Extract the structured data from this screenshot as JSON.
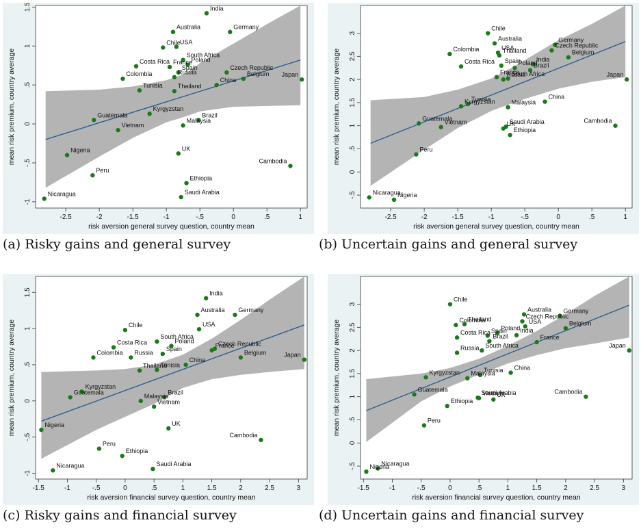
{
  "chart_data": [
    {
      "type": "scatter",
      "caption": "(a) Risky gains and general survey",
      "xlabel": "risk aversion general survey question, country mean",
      "ylabel": "mean risk premium, country average",
      "xlim": [
        -2.95,
        1.1
      ],
      "ylim": [
        -1.08,
        1.52
      ],
      "xticks": [
        -2.5,
        -2,
        -1.5,
        -1,
        -0.5,
        0,
        0.5,
        1
      ],
      "xticklabels": [
        "-2.5",
        "-2",
        "-1.5",
        "-1",
        "-.5",
        "0",
        ".5",
        "1"
      ],
      "yticks": [
        -1,
        -0.5,
        0,
        0.5,
        1,
        1.5
      ],
      "yticklabels": [
        "-1",
        "-.5",
        "0",
        ".5",
        "1",
        "1.5"
      ],
      "fit": {
        "x": [
          -2.8,
          1.0
        ],
        "y": [
          -0.2,
          0.82
        ]
      },
      "band_upper": [
        [
          -2.8,
          0.42
        ],
        [
          -2.0,
          0.44
        ],
        [
          -1.5,
          0.48
        ],
        [
          -1.0,
          0.56
        ],
        [
          -0.7,
          0.65
        ],
        [
          -0.5,
          0.78
        ],
        [
          0.0,
          1.03
        ],
        [
          0.5,
          1.28
        ],
        [
          1.0,
          1.52
        ]
      ],
      "band_lower": [
        [
          -2.8,
          -0.82
        ],
        [
          -2.0,
          -0.42
        ],
        [
          -1.5,
          -0.18
        ],
        [
          -1.0,
          0.02
        ],
        [
          -0.7,
          0.1
        ],
        [
          -0.5,
          0.16
        ],
        [
          0.0,
          0.22
        ],
        [
          0.5,
          0.23
        ],
        [
          1.0,
          0.24
        ]
      ],
      "points": [
        {
          "label": "India",
          "x": -0.4,
          "y": 1.42
        },
        {
          "label": "Germany",
          "x": -0.05,
          "y": 1.18
        },
        {
          "label": "Australia",
          "x": -0.9,
          "y": 1.18
        },
        {
          "label": "USA",
          "x": -0.85,
          "y": 0.99
        },
        {
          "label": "Chile",
          "x": -1.05,
          "y": 0.98
        },
        {
          "label": "South Africa",
          "x": -0.75,
          "y": 0.82
        },
        {
          "label": "Poland",
          "x": -0.68,
          "y": 0.76
        },
        {
          "label": "France",
          "x": -0.95,
          "y": 0.73
        },
        {
          "label": "Costa Rica",
          "x": -1.45,
          "y": 0.74
        },
        {
          "label": "Spain",
          "x": -0.82,
          "y": 0.66
        },
        {
          "label": "Colombia",
          "x": -1.65,
          "y": 0.58
        },
        {
          "label": "Czech Republic",
          "x": -0.1,
          "y": 0.66
        },
        {
          "label": "Russia",
          "x": -0.88,
          "y": 0.6
        },
        {
          "label": "China",
          "x": -0.25,
          "y": 0.5
        },
        {
          "label": "Belgium",
          "x": 0.15,
          "y": 0.58
        },
        {
          "label": "Japan",
          "x": 1.02,
          "y": 0.57
        },
        {
          "label": "Thailand",
          "x": -0.88,
          "y": 0.42
        },
        {
          "label": "Tunisia",
          "x": -1.4,
          "y": 0.43
        },
        {
          "label": "Kyrgyzstan",
          "x": -1.25,
          "y": 0.13
        },
        {
          "label": "Guatemala",
          "x": -2.08,
          "y": 0.05
        },
        {
          "label": "Brazil",
          "x": -0.52,
          "y": 0.05
        },
        {
          "label": "Vietnam",
          "x": -1.72,
          "y": -0.08
        },
        {
          "label": "Malaysia",
          "x": -0.75,
          "y": -0.02
        },
        {
          "label": "Nigeria",
          "x": -2.48,
          "y": -0.4
        },
        {
          "label": "UK",
          "x": -0.82,
          "y": -0.38
        },
        {
          "label": "Cambodia",
          "x": 0.85,
          "y": -0.54
        },
        {
          "label": "Peru",
          "x": -2.1,
          "y": -0.66
        },
        {
          "label": "Ethiopia",
          "x": -0.7,
          "y": -0.76
        },
        {
          "label": "Saudi Arabia",
          "x": -0.78,
          "y": -0.94
        },
        {
          "label": "Nicaragua",
          "x": -2.82,
          "y": -0.96
        }
      ]
    },
    {
      "type": "scatter",
      "caption": "(b) Uncertain gains and general survey",
      "xlabel": "risk aversion general survey question, country mean",
      "ylabel": "mean risk premium, country average",
      "xlim": [
        -2.95,
        1.1
      ],
      "ylim": [
        -0.78,
        3.6
      ],
      "xticks": [
        -2.5,
        -2,
        -1.5,
        -1,
        -0.5,
        0,
        0.5,
        1
      ],
      "xticklabels": [
        "-2.5",
        "-2",
        "-1.5",
        "-1",
        "-.5",
        "0",
        ".5",
        "1"
      ],
      "yticks": [
        -0.5,
        0,
        0.5,
        1,
        1.5,
        2,
        2.5,
        3
      ],
      "yticklabels": [
        "-.5",
        "0",
        ".5",
        "1",
        "1.5",
        "2",
        "2.5",
        "3"
      ],
      "fit": {
        "x": [
          -2.8,
          1.0
        ],
        "y": [
          0.62,
          2.82
        ]
      },
      "band_upper": [
        [
          -2.8,
          1.55
        ],
        [
          -2.0,
          1.62
        ],
        [
          -1.5,
          1.78
        ],
        [
          -1.0,
          2.02
        ],
        [
          -0.7,
          2.25
        ],
        [
          -0.5,
          2.42
        ],
        [
          0.0,
          2.85
        ],
        [
          0.5,
          3.2
        ],
        [
          1.0,
          3.6
        ]
      ],
      "band_lower": [
        [
          -2.8,
          -0.3
        ],
        [
          -2.0,
          0.48
        ],
        [
          -1.5,
          0.95
        ],
        [
          -1.0,
          1.32
        ],
        [
          -0.7,
          1.48
        ],
        [
          -0.5,
          1.58
        ],
        [
          0.0,
          1.8
        ],
        [
          0.5,
          1.95
        ],
        [
          1.0,
          2.05
        ]
      ],
      "points": [
        {
          "label": "Chile",
          "x": -1.05,
          "y": 3.0
        },
        {
          "label": "Germany",
          "x": -0.05,
          "y": 2.75
        },
        {
          "label": "Australia",
          "x": -0.95,
          "y": 2.78
        },
        {
          "label": "Colombia",
          "x": -1.62,
          "y": 2.55
        },
        {
          "label": "Czech Republic",
          "x": -0.1,
          "y": 2.63
        },
        {
          "label": "USA",
          "x": -0.9,
          "y": 2.58
        },
        {
          "label": "Thailand",
          "x": -0.88,
          "y": 2.52
        },
        {
          "label": "Belgium",
          "x": 0.15,
          "y": 2.48
        },
        {
          "label": "India",
          "x": -0.38,
          "y": 2.33
        },
        {
          "label": "Costa Rica",
          "x": -1.45,
          "y": 2.28
        },
        {
          "label": "Spain",
          "x": -0.85,
          "y": 2.3
        },
        {
          "label": "Poland",
          "x": -0.65,
          "y": 2.25
        },
        {
          "label": "Brazil",
          "x": -0.42,
          "y": 2.2
        },
        {
          "label": "France",
          "x": -0.92,
          "y": 2.05
        },
        {
          "label": "Russia",
          "x": -0.82,
          "y": 2.0
        },
        {
          "label": "South Africa",
          "x": -0.75,
          "y": 2.02
        },
        {
          "label": "Japan",
          "x": 1.02,
          "y": 2.0
        },
        {
          "label": "China",
          "x": -0.2,
          "y": 1.52
        },
        {
          "label": "Tunisia",
          "x": -1.35,
          "y": 1.47
        },
        {
          "label": "Kyrgyzstan",
          "x": -1.45,
          "y": 1.42
        },
        {
          "label": "Malaysia",
          "x": -0.75,
          "y": 1.4
        },
        {
          "label": "Guatemala",
          "x": -2.08,
          "y": 1.05
        },
        {
          "label": "Vietnam",
          "x": -1.75,
          "y": 0.97
        },
        {
          "label": "Saudi Arabia",
          "x": -0.78,
          "y": 0.98
        },
        {
          "label": "UK",
          "x": -0.82,
          "y": 0.94
        },
        {
          "label": "Cambodia",
          "x": 0.85,
          "y": 1.0
        },
        {
          "label": "Ethiopia",
          "x": -0.72,
          "y": 0.8
        },
        {
          "label": "Peru",
          "x": -2.12,
          "y": 0.38
        },
        {
          "label": "Nicaragua",
          "x": -2.82,
          "y": -0.55
        },
        {
          "label": "Nigeria",
          "x": -2.45,
          "y": -0.6
        }
      ]
    },
    {
      "type": "scatter",
      "caption": "(c) Risky gains and financial survey",
      "xlabel": "risk aversion financial survey question, country mean",
      "ylabel": "mean risk premium, country average",
      "xlim": [
        -1.55,
        3.15
      ],
      "ylim": [
        -1.08,
        1.72
      ],
      "xticks": [
        -1.5,
        -1,
        -0.5,
        0,
        0.5,
        1,
        1.5,
        2,
        2.5,
        3
      ],
      "xticklabels": [
        "-1.5",
        "-1",
        "-.5",
        "0",
        ".5",
        "1",
        "1.5",
        "2",
        "2.5",
        "3"
      ],
      "yticks": [
        -1,
        -0.5,
        0,
        0.5,
        1,
        1.5
      ],
      "yticklabels": [
        "-1",
        "-.5",
        "0",
        ".5",
        "1",
        "1.5"
      ],
      "fit": {
        "x": [
          -1.45,
          3.1
        ],
        "y": [
          -0.28,
          1.05
        ]
      },
      "band_upper": [
        [
          -1.45,
          0.4
        ],
        [
          -0.5,
          0.42
        ],
        [
          0.0,
          0.44
        ],
        [
          0.5,
          0.5
        ],
        [
          1.0,
          0.64
        ],
        [
          1.5,
          0.86
        ],
        [
          2.0,
          1.12
        ],
        [
          2.5,
          1.4
        ],
        [
          3.1,
          1.72
        ]
      ],
      "band_lower": [
        [
          -1.45,
          -0.8
        ],
        [
          -0.5,
          -0.4
        ],
        [
          0.0,
          -0.22
        ],
        [
          0.5,
          -0.04
        ],
        [
          1.0,
          0.18
        ],
        [
          1.5,
          0.3
        ],
        [
          2.0,
          0.36
        ],
        [
          2.5,
          0.4
        ],
        [
          3.1,
          0.44
        ]
      ],
      "points": [
        {
          "label": "India",
          "x": 1.4,
          "y": 1.42
        },
        {
          "label": "Germany",
          "x": 1.9,
          "y": 1.19
        },
        {
          "label": "Australia",
          "x": 1.25,
          "y": 1.19
        },
        {
          "label": "USA",
          "x": 1.28,
          "y": 0.99
        },
        {
          "label": "Chile",
          "x": 0.0,
          "y": 0.98
        },
        {
          "label": "South Africa",
          "x": 0.55,
          "y": 0.82
        },
        {
          "label": "Poland",
          "x": 0.8,
          "y": 0.76
        },
        {
          "label": "Costa Rica",
          "x": -0.2,
          "y": 0.74
        },
        {
          "label": "Czech Republic",
          "x": 1.55,
          "y": 0.72
        },
        {
          "label": "France",
          "x": 1.5,
          "y": 0.7
        },
        {
          "label": "Spain",
          "x": 0.65,
          "y": 0.65
        },
        {
          "label": "China",
          "x": 1.05,
          "y": 0.5
        },
        {
          "label": "Colombia",
          "x": -0.55,
          "y": 0.6
        },
        {
          "label": "Russia",
          "x": 0.1,
          "y": 0.6
        },
        {
          "label": "Belgium",
          "x": 2.0,
          "y": 0.6
        },
        {
          "label": "Japan",
          "x": 3.1,
          "y": 0.57
        },
        {
          "label": "Tunisia",
          "x": 0.55,
          "y": 0.43
        },
        {
          "label": "Thailand",
          "x": 0.25,
          "y": 0.42
        },
        {
          "label": "Kyrgyzstan",
          "x": -0.75,
          "y": 0.13
        },
        {
          "label": "Guatemala",
          "x": -0.95,
          "y": 0.05
        },
        {
          "label": "Brazil",
          "x": 0.68,
          "y": 0.05
        },
        {
          "label": "Malaysia",
          "x": 0.27,
          "y": 0.0
        },
        {
          "label": "Vietnam",
          "x": 0.5,
          "y": -0.08
        },
        {
          "label": "Nigeria",
          "x": -1.45,
          "y": -0.4
        },
        {
          "label": "UK",
          "x": 0.75,
          "y": -0.38
        },
        {
          "label": "Cambodia",
          "x": 2.35,
          "y": -0.54
        },
        {
          "label": "Peru",
          "x": -0.45,
          "y": -0.66
        },
        {
          "label": "Ethiopia",
          "x": -0.05,
          "y": -0.76
        },
        {
          "label": "Saudi Arabia",
          "x": 0.48,
          "y": -0.94
        },
        {
          "label": "Nicaragua",
          "x": -1.25,
          "y": -0.96
        }
      ]
    },
    {
      "type": "scatter",
      "caption": "(d) Uncertain gains and financial survey",
      "xlabel": "risk aversion financial survey question, country mean",
      "ylabel": "mean risk premium, country average",
      "xlim": [
        -1.55,
        3.15
      ],
      "ylim": [
        -0.78,
        3.6
      ],
      "xticks": [
        -1.5,
        -1,
        -0.5,
        0,
        0.5,
        1,
        1.5,
        2,
        2.5,
        3
      ],
      "xticklabels": [
        "-1.5",
        "-1",
        "-.5",
        "0",
        ".5",
        "1",
        "1.5",
        "2",
        "2.5",
        "3"
      ],
      "yticks": [
        -0.5,
        0,
        0.5,
        1,
        1.5,
        2,
        2.5,
        3
      ],
      "yticklabels": [
        "-.5",
        "0",
        ".5",
        "1",
        "1.5",
        "2",
        "2.5",
        "3"
      ],
      "fit": {
        "x": [
          -1.45,
          3.1
        ],
        "y": [
          0.7,
          2.98
        ]
      },
      "band_upper": [
        [
          -1.45,
          1.38
        ],
        [
          -0.5,
          1.5
        ],
        [
          0.0,
          1.62
        ],
        [
          0.5,
          1.82
        ],
        [
          1.0,
          2.1
        ],
        [
          1.5,
          2.42
        ],
        [
          2.0,
          2.78
        ],
        [
          2.5,
          3.18
        ],
        [
          3.1,
          3.6
        ]
      ],
      "band_lower": [
        [
          -1.45,
          0.02
        ],
        [
          -0.5,
          0.9
        ],
        [
          0.0,
          1.22
        ],
        [
          0.5,
          1.48
        ],
        [
          1.0,
          1.72
        ],
        [
          1.5,
          1.9
        ],
        [
          2.0,
          2.05
        ],
        [
          2.5,
          2.15
        ],
        [
          3.1,
          2.28
        ]
      ],
      "points": [
        {
          "label": "Chile",
          "x": 0.0,
          "y": 3.0
        },
        {
          "label": "Australia",
          "x": 1.28,
          "y": 2.78
        },
        {
          "label": "Germany",
          "x": 1.9,
          "y": 2.75
        },
        {
          "label": "Colombia",
          "x": 0.1,
          "y": 2.55
        },
        {
          "label": "Thailand",
          "x": 0.25,
          "y": 2.57
        },
        {
          "label": "Czech Republic",
          "x": 1.25,
          "y": 2.63
        },
        {
          "label": "USA",
          "x": 1.3,
          "y": 2.52
        },
        {
          "label": "Belgium",
          "x": 2.0,
          "y": 2.48
        },
        {
          "label": "Poland",
          "x": 0.82,
          "y": 2.38
        },
        {
          "label": "India",
          "x": 1.15,
          "y": 2.33
        },
        {
          "label": "Spain",
          "x": 0.65,
          "y": 2.32
        },
        {
          "label": "Costa Rica",
          "x": 0.12,
          "y": 2.28
        },
        {
          "label": "Brazil",
          "x": 0.68,
          "y": 2.2
        },
        {
          "label": "France",
          "x": 1.5,
          "y": 2.18
        },
        {
          "label": "South Africa",
          "x": 0.55,
          "y": 2.0
        },
        {
          "label": "Japan",
          "x": 3.1,
          "y": 2.0
        },
        {
          "label": "Russia",
          "x": 0.12,
          "y": 1.95
        },
        {
          "label": "China",
          "x": 1.05,
          "y": 1.52
        },
        {
          "label": "Tunisia",
          "x": 0.52,
          "y": 1.47
        },
        {
          "label": "Kyrgyzstan",
          "x": -0.42,
          "y": 1.42
        },
        {
          "label": "Malaysia",
          "x": 0.3,
          "y": 1.4
        },
        {
          "label": "Guatemala",
          "x": -0.62,
          "y": 1.05
        },
        {
          "label": "Saudi Arabia",
          "x": 0.48,
          "y": 0.98
        },
        {
          "label": "Vietnam",
          "x": 0.5,
          "y": 0.97
        },
        {
          "label": "UK",
          "x": 0.75,
          "y": 0.94
        },
        {
          "label": "Cambodia",
          "x": 2.35,
          "y": 1.0
        },
        {
          "label": "Ethiopia",
          "x": -0.05,
          "y": 0.8
        },
        {
          "label": "Peru",
          "x": -0.45,
          "y": 0.38
        },
        {
          "label": "Nicaragua",
          "x": -1.25,
          "y": -0.55
        },
        {
          "label": "Nigeria",
          "x": -1.45,
          "y": -0.62
        }
      ]
    }
  ]
}
